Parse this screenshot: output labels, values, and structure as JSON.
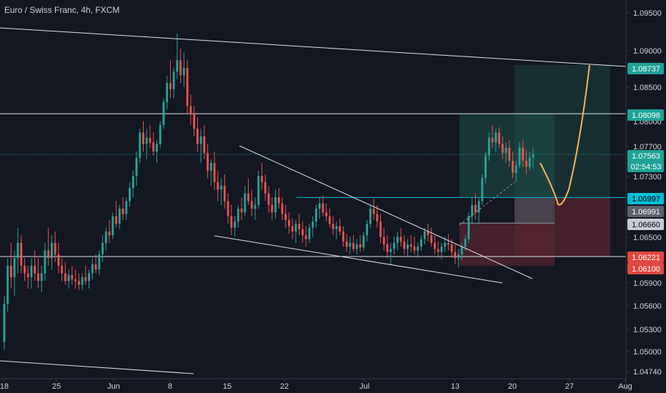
{
  "chart_data": {
    "type": "candlestick",
    "title": "Euro / Swiss Franc, 4h, FXCM",
    "instrument": "Euro / Swiss Franc",
    "timeframe": "4h",
    "source": "FXCM",
    "ylim": [
      1.046,
      1.097
    ],
    "y_ticks": [
      "1.09500",
      "1.09000",
      "1.08500",
      "1.08000",
      "1.07700",
      "1.07300",
      "1.06500",
      "1.05900",
      "1.05600",
      "1.05300",
      "1.05000",
      "1.04740"
    ],
    "x_ticks": [
      "18",
      "25",
      "Jun",
      "8",
      "15",
      "22",
      "Jul",
      "13",
      "20",
      "27",
      "Aug"
    ],
    "grid": false,
    "colors": {
      "background": "#131722",
      "up": "#26a69a",
      "down": "#ef5350",
      "lines": "#e0e3eb",
      "projection": "#f7b65b",
      "target_zone": "#1d4e4a",
      "stop_zone": "#5a2630",
      "axis_text": "#d1d4dc"
    },
    "price_tags": [
      {
        "label": "1.08737",
        "value": 1.08737,
        "bg": "#1fa298",
        "fg": "#ffffff"
      },
      {
        "label": "1.08098",
        "value": 1.08098,
        "bg": "#1fa298",
        "fg": "#ffffff"
      },
      {
        "label": "1.07563",
        "value": 1.07563,
        "bg": "#1fa298",
        "fg": "#ffffff"
      },
      {
        "label": "02:54:53",
        "value": 1.0737,
        "bg": "#1fa298",
        "fg": "#ffffff"
      },
      {
        "label": "1.06997",
        "value": 1.06997,
        "bg": "#00bcd4",
        "fg": "#000000"
      },
      {
        "label": "1.06991",
        "value": 1.06991,
        "bg": "#5d606b",
        "fg": "#ffffff"
      },
      {
        "label": "1.06660",
        "value": 1.0666,
        "bg": "#c9ccd4",
        "fg": "#000000"
      },
      {
        "label": "1.06221",
        "value": 1.06221,
        "bg": "#e0483f",
        "fg": "#ffffff"
      },
      {
        "label": "1.06100",
        "value": 1.061,
        "bg": "#e0483f",
        "fg": "#ffffff"
      }
    ],
    "candles": [
      [
        1.051,
        1.057,
        1.05,
        1.056
      ],
      [
        1.056,
        1.062,
        1.055,
        1.061
      ],
      [
        1.061,
        1.064,
        1.058,
        1.0595
      ],
      [
        1.0595,
        1.063,
        1.057,
        1.062
      ],
      [
        1.062,
        1.066,
        1.06,
        1.064
      ],
      [
        1.064,
        1.065,
        1.06,
        1.061
      ],
      [
        1.061,
        1.062,
        1.059,
        1.06
      ],
      [
        1.06,
        1.061,
        1.058,
        1.0595
      ],
      [
        1.0595,
        1.062,
        1.058,
        1.061
      ],
      [
        1.061,
        1.063,
        1.059,
        1.06
      ],
      [
        1.06,
        1.062,
        1.058,
        1.059
      ],
      [
        1.059,
        1.061,
        1.0575,
        1.06
      ],
      [
        1.06,
        1.064,
        1.059,
        1.063
      ],
      [
        1.063,
        1.066,
        1.061,
        1.062
      ],
      [
        1.062,
        1.065,
        1.0605,
        1.064
      ],
      [
        1.064,
        1.0655,
        1.0615,
        1.0625
      ],
      [
        1.0625,
        1.064,
        1.06,
        1.061
      ],
      [
        1.061,
        1.062,
        1.059,
        1.06
      ],
      [
        1.06,
        1.0615,
        1.0585,
        1.059
      ],
      [
        1.059,
        1.0605,
        1.058,
        1.0598
      ],
      [
        1.0598,
        1.061,
        1.0585,
        1.0592
      ],
      [
        1.0592,
        1.0605,
        1.058,
        1.059
      ],
      [
        1.059,
        1.06,
        1.0578,
        1.0585
      ],
      [
        1.0585,
        1.06,
        1.0578,
        1.0595
      ],
      [
        1.0595,
        1.061,
        1.0585,
        1.059
      ],
      [
        1.059,
        1.0605,
        1.058,
        1.06
      ],
      [
        1.06,
        1.062,
        1.0592,
        1.0612
      ],
      [
        1.0612,
        1.0625,
        1.06,
        1.0605
      ],
      [
        1.0605,
        1.063,
        1.0598,
        1.0625
      ],
      [
        1.0625,
        1.065,
        1.0615,
        1.064
      ],
      [
        1.064,
        1.066,
        1.063,
        1.0655
      ],
      [
        1.0655,
        1.067,
        1.064,
        1.065
      ],
      [
        1.065,
        1.068,
        1.0645,
        1.0675
      ],
      [
        1.0675,
        1.0695,
        1.066,
        1.0665
      ],
      [
        1.0665,
        1.069,
        1.0658,
        1.0685
      ],
      [
        1.0685,
        1.07,
        1.067,
        1.0678
      ],
      [
        1.0678,
        1.07,
        1.067,
        1.0695
      ],
      [
        1.0695,
        1.072,
        1.0688,
        1.0712
      ],
      [
        1.0712,
        1.0735,
        1.07,
        1.0728
      ],
      [
        1.0728,
        1.076,
        1.0715,
        1.0752
      ],
      [
        1.0752,
        1.079,
        1.0745,
        1.0785
      ],
      [
        1.0785,
        1.08,
        1.076,
        1.077
      ],
      [
        1.077,
        1.079,
        1.075,
        1.0778
      ],
      [
        1.0778,
        1.0795,
        1.0765,
        1.0772
      ],
      [
        1.0772,
        1.0785,
        1.0755,
        1.076
      ],
      [
        1.076,
        1.0775,
        1.0745,
        1.077
      ],
      [
        1.077,
        1.08,
        1.0765,
        1.0795
      ],
      [
        1.0795,
        1.083,
        1.079,
        1.0825
      ],
      [
        1.0825,
        1.086,
        1.0815,
        1.085
      ],
      [
        1.085,
        1.088,
        1.083,
        1.0842
      ],
      [
        1.0842,
        1.087,
        1.083,
        1.0865
      ],
      [
        1.0865,
        1.0915,
        1.0855,
        1.088
      ],
      [
        1.088,
        1.0895,
        1.085,
        1.086
      ],
      [
        1.086,
        1.089,
        1.0845,
        1.087
      ],
      [
        1.087,
        1.088,
        1.081,
        1.082
      ],
      [
        1.082,
        1.0835,
        1.0795,
        1.081
      ],
      [
        1.081,
        1.082,
        1.078,
        1.079
      ],
      [
        1.079,
        1.0805,
        1.076,
        1.077
      ],
      [
        1.077,
        1.079,
        1.0745,
        1.078
      ],
      [
        1.078,
        1.0795,
        1.075,
        1.0758
      ],
      [
        1.0758,
        1.077,
        1.0725,
        1.0735
      ],
      [
        1.0735,
        1.075,
        1.0715,
        1.0745
      ],
      [
        1.0745,
        1.076,
        1.071,
        1.072
      ],
      [
        1.072,
        1.0735,
        1.0695,
        1.071
      ],
      [
        1.071,
        1.0725,
        1.069,
        1.0715
      ],
      [
        1.0715,
        1.073,
        1.0685,
        1.0695
      ],
      [
        1.0695,
        1.0705,
        1.0665,
        1.0675
      ],
      [
        1.0675,
        1.069,
        1.065,
        1.066
      ],
      [
        1.066,
        1.0675,
        1.0648,
        1.0668
      ],
      [
        1.0668,
        1.069,
        1.066,
        1.0685
      ],
      [
        1.0685,
        1.07,
        1.067,
        1.068
      ],
      [
        1.068,
        1.0715,
        1.0675,
        1.0705
      ],
      [
        1.0705,
        1.0725,
        1.069,
        1.0695
      ],
      [
        1.0695,
        1.071,
        1.0675,
        1.0685
      ],
      [
        1.0685,
        1.07,
        1.067,
        1.069
      ],
      [
        1.069,
        1.0735,
        1.0685,
        1.0728
      ],
      [
        1.0728,
        1.0745,
        1.071,
        1.072
      ],
      [
        1.072,
        1.073,
        1.0695,
        1.0705
      ],
      [
        1.0705,
        1.0715,
        1.068,
        1.069
      ],
      [
        1.069,
        1.07,
        1.067,
        1.068
      ],
      [
        1.068,
        1.071,
        1.0672,
        1.07
      ],
      [
        1.07,
        1.0712,
        1.0685,
        1.0692
      ],
      [
        1.0692,
        1.07,
        1.067,
        1.0678
      ],
      [
        1.0678,
        1.069,
        1.066,
        1.067
      ],
      [
        1.067,
        1.068,
        1.0652,
        1.0662
      ],
      [
        1.0662,
        1.0672,
        1.0645,
        1.0655
      ],
      [
        1.0655,
        1.067,
        1.064,
        1.0665
      ],
      [
        1.0665,
        1.0678,
        1.065,
        1.0658
      ],
      [
        1.0658,
        1.0668,
        1.064,
        1.065
      ],
      [
        1.065,
        1.0662,
        1.0635,
        1.0645
      ],
      [
        1.0645,
        1.0665,
        1.064,
        1.066
      ],
      [
        1.066,
        1.0675,
        1.0648,
        1.0668
      ],
      [
        1.0668,
        1.069,
        1.066,
        1.0685
      ],
      [
        1.0685,
        1.07,
        1.0672,
        1.0692
      ],
      [
        1.0692,
        1.0702,
        1.0675,
        1.068
      ],
      [
        1.068,
        1.0692,
        1.0668,
        1.0675
      ],
      [
        1.0675,
        1.0685,
        1.066,
        1.0665
      ],
      [
        1.0665,
        1.0675,
        1.065,
        1.0658
      ],
      [
        1.0658,
        1.0668,
        1.0645,
        1.0662
      ],
      [
        1.0662,
        1.0672,
        1.065,
        1.0655
      ],
      [
        1.0655,
        1.0662,
        1.0635,
        1.0642
      ],
      [
        1.0642,
        1.0652,
        1.0628,
        1.0635
      ],
      [
        1.0635,
        1.0648,
        1.0625,
        1.064
      ],
      [
        1.064,
        1.065,
        1.0628,
        1.0632
      ],
      [
        1.0632,
        1.0645,
        1.0625,
        1.0638
      ],
      [
        1.0638,
        1.065,
        1.0628,
        1.0634
      ],
      [
        1.0634,
        1.0655,
        1.063,
        1.065
      ],
      [
        1.065,
        1.067,
        1.0642,
        1.0665
      ],
      [
        1.0665,
        1.069,
        1.066,
        1.0685
      ],
      [
        1.0685,
        1.0698,
        1.067,
        1.0678
      ],
      [
        1.0678,
        1.069,
        1.066,
        1.0668
      ],
      [
        1.0668,
        1.0678,
        1.064,
        1.0648
      ],
      [
        1.0648,
        1.066,
        1.063,
        1.0638
      ],
      [
        1.0638,
        1.065,
        1.062,
        1.0628
      ],
      [
        1.0628,
        1.064,
        1.0612,
        1.0632
      ],
      [
        1.0632,
        1.0648,
        1.0625,
        1.064
      ],
      [
        1.064,
        1.0655,
        1.063,
        1.0648
      ],
      [
        1.0648,
        1.066,
        1.0635,
        1.0642
      ],
      [
        1.0642,
        1.065,
        1.0625,
        1.0632
      ],
      [
        1.0632,
        1.0645,
        1.0622,
        1.0638
      ],
      [
        1.0638,
        1.065,
        1.0628,
        1.0635
      ],
      [
        1.0635,
        1.0648,
        1.0625,
        1.063
      ],
      [
        1.063,
        1.064,
        1.062,
        1.0635
      ],
      [
        1.0635,
        1.065,
        1.063,
        1.0645
      ],
      [
        1.0645,
        1.066,
        1.0638,
        1.0655
      ],
      [
        1.0655,
        1.0665,
        1.0642,
        1.065
      ],
      [
        1.065,
        1.066,
        1.0635,
        1.064
      ],
      [
        1.064,
        1.065,
        1.0625,
        1.0632
      ],
      [
        1.0632,
        1.0642,
        1.062,
        1.0628
      ],
      [
        1.0628,
        1.064,
        1.0618,
        1.0635
      ],
      [
        1.0635,
        1.0648,
        1.0628,
        1.064
      ],
      [
        1.064,
        1.0652,
        1.063,
        1.0638
      ],
      [
        1.0638,
        1.0645,
        1.062,
        1.0628
      ],
      [
        1.0628,
        1.0638,
        1.0612,
        1.062
      ],
      [
        1.062,
        1.0632,
        1.0608,
        1.0625
      ],
      [
        1.0625,
        1.064,
        1.0618,
        1.0635
      ],
      [
        1.0635,
        1.065,
        1.063,
        1.0645
      ],
      [
        1.0645,
        1.068,
        1.064,
        1.0675
      ],
      [
        1.0675,
        1.07,
        1.0665,
        1.069
      ],
      [
        1.069,
        1.0705,
        1.067,
        1.068
      ],
      [
        1.068,
        1.07,
        1.0665,
        1.0695
      ],
      [
        1.0695,
        1.073,
        1.069,
        1.0725
      ],
      [
        1.0725,
        1.076,
        1.0718,
        1.0755
      ],
      [
        1.0755,
        1.0785,
        1.0748,
        1.0778
      ],
      [
        1.0778,
        1.0795,
        1.0765,
        1.0772
      ],
      [
        1.0772,
        1.079,
        1.076,
        1.0785
      ],
      [
        1.0785,
        1.0792,
        1.0765,
        1.077
      ],
      [
        1.077,
        1.078,
        1.075,
        1.0758
      ],
      [
        1.0758,
        1.0772,
        1.0745,
        1.0765
      ],
      [
        1.0765,
        1.0775,
        1.074,
        1.0748
      ],
      [
        1.0748,
        1.076,
        1.0725,
        1.0732
      ],
      [
        1.0732,
        1.0748,
        1.072,
        1.0742
      ],
      [
        1.0742,
        1.0772,
        1.0738,
        1.0765
      ],
      [
        1.0765,
        1.0775,
        1.074,
        1.0748
      ],
      [
        1.0748,
        1.0762,
        1.073,
        1.074
      ],
      [
        1.074,
        1.076,
        1.0735,
        1.0752
      ],
      [
        1.0752,
        1.0765,
        1.0738,
        1.0756
      ]
    ]
  }
}
